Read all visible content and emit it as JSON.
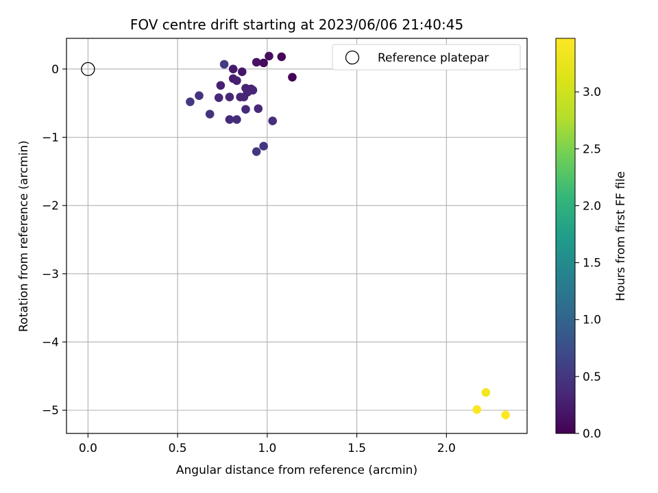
{
  "chart_data": {
    "type": "scatter",
    "title": "FOV centre drift starting at 2023/06/06 21:40:45",
    "xlabel": "Angular distance from reference (arcmin)",
    "ylabel": "Rotation from reference (arcmin)",
    "xlim": [
      -0.12,
      2.45
    ],
    "ylim": [
      -5.34,
      0.45
    ],
    "xticks": [
      0.0,
      0.5,
      1.0,
      1.5,
      2.0
    ],
    "xtick_labels": [
      "0.0",
      "0.5",
      "1.0",
      "1.5",
      "2.0"
    ],
    "yticks": [
      0,
      -1,
      -2,
      -3,
      -4,
      -5
    ],
    "ytick_labels": [
      "0",
      "−1",
      "−2",
      "−3",
      "−4",
      "−5"
    ],
    "grid": true,
    "legend_position": "top-right",
    "reference_point": {
      "name": "Reference platepar",
      "x": 0.0,
      "y": 0.0
    },
    "colorbar": {
      "label": "Hours from first FF file",
      "colormap": "viridis",
      "range": [
        0.0,
        3.47
      ],
      "ticks": [
        0.0,
        0.5,
        1.0,
        1.5,
        2.0,
        2.5,
        3.0
      ],
      "tick_labels": [
        "0.0",
        "0.5",
        "1.0",
        "1.5",
        "2.0",
        "2.5",
        "3.0"
      ]
    },
    "points": [
      {
        "x": 1.14,
        "y": -0.12,
        "c": 0.02
      },
      {
        "x": 1.08,
        "y": 0.18,
        "c": 0.05
      },
      {
        "x": 0.98,
        "y": 0.09,
        "c": 0.08
      },
      {
        "x": 1.01,
        "y": 0.19,
        "c": 0.12
      },
      {
        "x": 0.94,
        "y": 0.1,
        "c": 0.15
      },
      {
        "x": 0.86,
        "y": -0.04,
        "c": 0.2
      },
      {
        "x": 0.81,
        "y": 0.0,
        "c": 0.22
      },
      {
        "x": 0.81,
        "y": -0.14,
        "c": 0.25
      },
      {
        "x": 0.83,
        "y": -0.17,
        "c": 0.27
      },
      {
        "x": 0.74,
        "y": -0.24,
        "c": 0.28
      },
      {
        "x": 0.88,
        "y": -0.28,
        "c": 0.3
      },
      {
        "x": 0.91,
        "y": -0.29,
        "c": 0.3
      },
      {
        "x": 0.92,
        "y": -0.31,
        "c": 0.32
      },
      {
        "x": 0.89,
        "y": -0.34,
        "c": 0.32
      },
      {
        "x": 0.85,
        "y": -0.41,
        "c": 0.33
      },
      {
        "x": 0.87,
        "y": -0.41,
        "c": 0.33
      },
      {
        "x": 0.79,
        "y": -0.41,
        "c": 0.34
      },
      {
        "x": 0.73,
        "y": -0.42,
        "c": 0.35
      },
      {
        "x": 0.95,
        "y": -0.58,
        "c": 0.36
      },
      {
        "x": 0.88,
        "y": -0.59,
        "c": 0.37
      },
      {
        "x": 0.79,
        "y": -0.74,
        "c": 0.38
      },
      {
        "x": 0.83,
        "y": -0.74,
        "c": 0.4
      },
      {
        "x": 1.03,
        "y": -0.76,
        "c": 0.42
      },
      {
        "x": 0.68,
        "y": -0.66,
        "c": 0.45
      },
      {
        "x": 0.62,
        "y": -0.39,
        "c": 0.46
      },
      {
        "x": 0.98,
        "y": -1.13,
        "c": 0.48
      },
      {
        "x": 0.94,
        "y": -1.21,
        "c": 0.5
      },
      {
        "x": 0.57,
        "y": -0.48,
        "c": 0.53
      },
      {
        "x": 0.76,
        "y": 0.07,
        "c": 0.56
      },
      {
        "x": 2.22,
        "y": -4.74,
        "c": 3.35
      },
      {
        "x": 2.17,
        "y": -4.99,
        "c": 3.43
      },
      {
        "x": 2.33,
        "y": -5.07,
        "c": 3.47
      }
    ]
  }
}
